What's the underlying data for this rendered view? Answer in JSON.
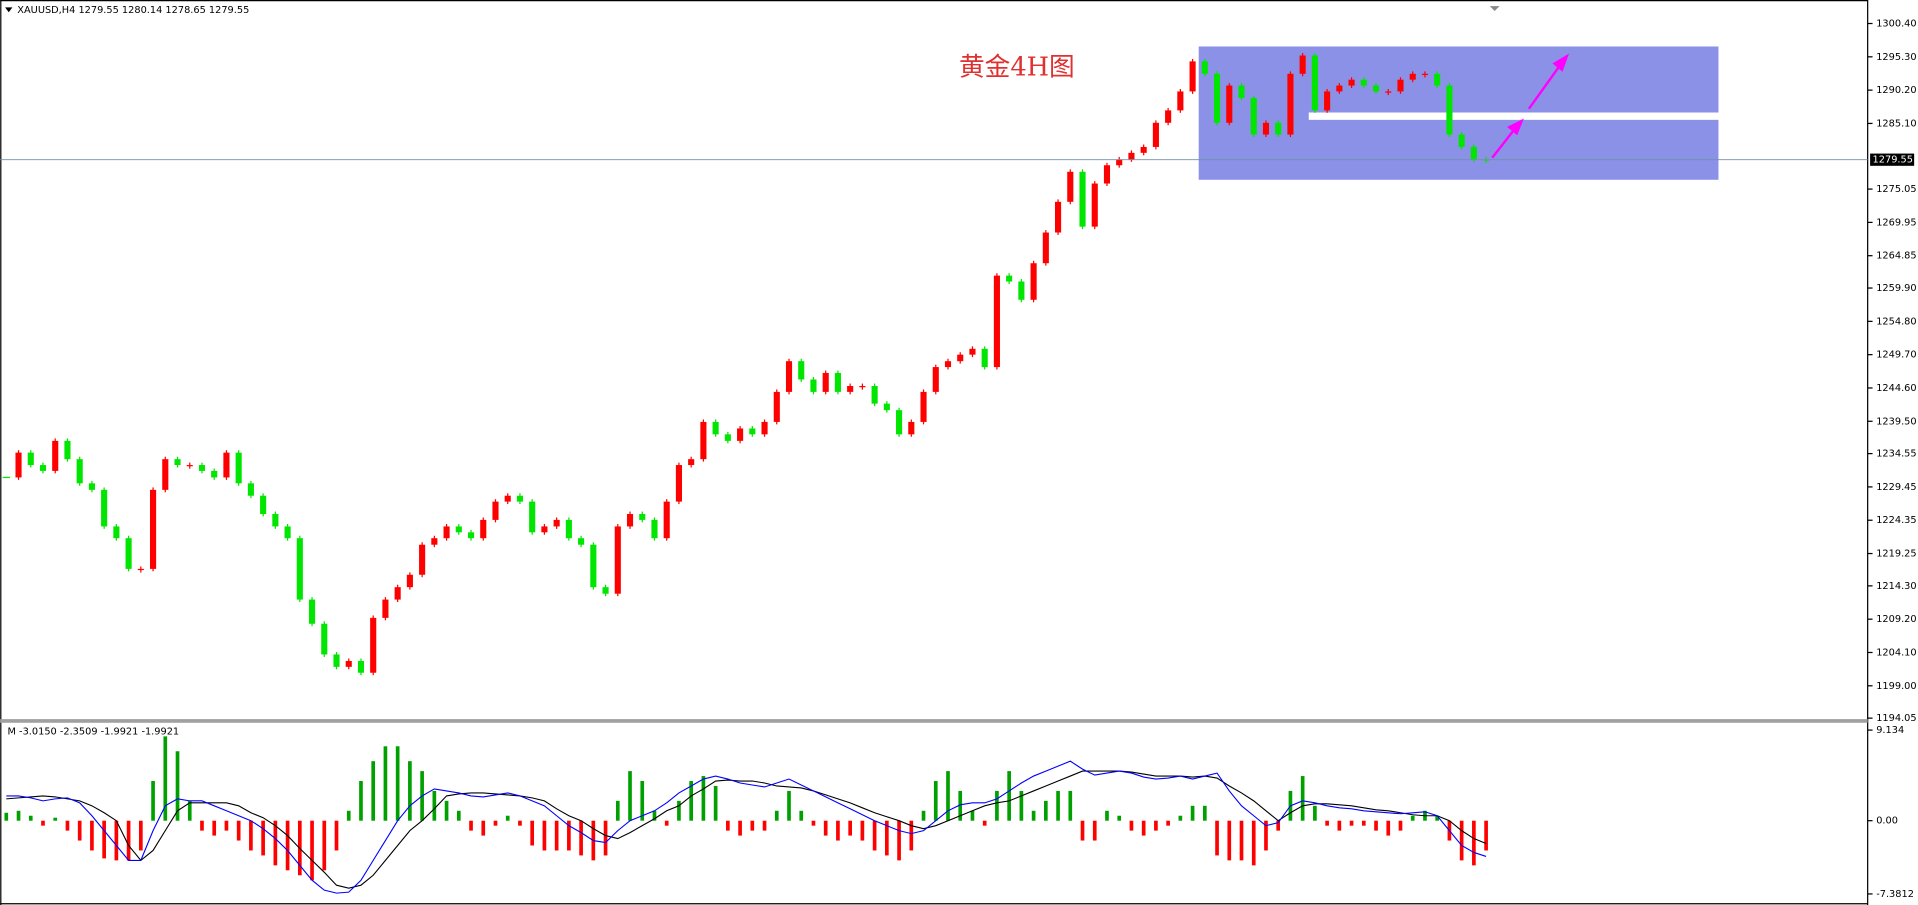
{
  "chart_data": [
    {
      "type": "candlestick",
      "header": "XAUUSD,H4  1279.55 1280.14 1278.65 1279.55",
      "annotations": [
        "黄金4H图"
      ],
      "up_color": "#ff0000",
      "down_color": "#00e600",
      "values": [
        1230.9,
        1234.7,
        1232.8,
        1231.9,
        1236.5,
        1233.7,
        1230,
        1229,
        1223.4,
        1221.6,
        1216.9,
        1216.9,
        1229,
        1233.7,
        1232.8,
        1232.8,
        1231.9,
        1230.9,
        1234.7,
        1230,
        1228.1,
        1225.3,
        1223.4,
        1221.6,
        1212.2,
        1208.5,
        1203.8,
        1201.9,
        1202.8,
        1201,
        1209.4,
        1212.2,
        1214.1,
        1216,
        1220.6,
        1221.6,
        1223.4,
        1222.5,
        1221.6,
        1224.4,
        1227.2,
        1228.1,
        1227.2,
        1222.5,
        1223.4,
        1224.4,
        1221.6,
        1220.6,
        1214.1,
        1213.1,
        1223.4,
        1225.3,
        1224.4,
        1221.6,
        1227.2,
        1232.8,
        1233.7,
        1239.4,
        1237.5,
        1236.5,
        1238.4,
        1237.5,
        1239.4,
        1244,
        1248.7,
        1245.9,
        1244,
        1246.9,
        1244,
        1244.9,
        1244.9,
        1242.2,
        1241.2,
        1237.5,
        1239.4,
        1244,
        1247.8,
        1248.7,
        1249.7,
        1250.6,
        1247.8,
        1261.8,
        1260.9,
        1258.1,
        1263.7,
        1268.4,
        1273.1,
        1277.7,
        1269.3,
        1275.9,
        1278.7,
        1279.6,
        1280.6,
        1281.5,
        1285.2,
        1287.1,
        1290,
        1294.6,
        1292.7,
        1285.2,
        1290.9,
        1289,
        1283.4,
        1285.2,
        1283.4,
        1292.7,
        1295.5,
        1287.1,
        1290,
        1290.9,
        1291.8,
        1290.9,
        1290,
        1290,
        1291.8,
        1292.7,
        1292.7,
        1290.9,
        1283.4,
        1281.5,
        1279.6,
        1279.55
      ],
      "current_price": {
        "value": 1279.55,
        "label": "1279.55"
      },
      "ylim": [
        1193.9,
        1304.0
      ],
      "yticks": [
        {
          "value": 1300.4,
          "label": "1300.40"
        },
        {
          "value": 1295.3,
          "label": "1295.30"
        },
        {
          "value": 1290.2,
          "label": "1290.20"
        },
        {
          "value": 1285.1,
          "label": "1285.10"
        },
        {
          "value": 1275.05,
          "label": "1275.05"
        },
        {
          "value": 1269.95,
          "label": "1269.95"
        },
        {
          "value": 1264.85,
          "label": "1264.85"
        },
        {
          "value": 1259.9,
          "label": "1259.90"
        },
        {
          "value": 1254.8,
          "label": "1254.80"
        },
        {
          "value": 1249.7,
          "label": "1249.70"
        },
        {
          "value": 1244.6,
          "label": "1244.60"
        },
        {
          "value": 1239.5,
          "label": "1239.50"
        },
        {
          "value": 1234.55,
          "label": "1234.55"
        },
        {
          "value": 1229.45,
          "label": "1229.45"
        },
        {
          "value": 1224.35,
          "label": "1224.35"
        },
        {
          "value": 1219.25,
          "label": "1219.25"
        },
        {
          "value": 1214.3,
          "label": "1214.30"
        },
        {
          "value": 1209.2,
          "label": "1209.20"
        },
        {
          "value": 1204.1,
          "label": "1204.10"
        },
        {
          "value": 1199,
          "label": "1199.00"
        },
        {
          "value": 1194.05,
          "label": "1194.05"
        }
      ]
    },
    {
      "type": "macd",
      "label": "M -3.0150 -2.3509 -1.9921 -1.9921",
      "ylim": [
        -8.25,
        9.87
      ],
      "yticks": [
        9.134,
        {
          "value": 0,
          "label": "0.00"
        },
        -7.3812
      ],
      "series": [
        {
          "type": "bar",
          "color": "#00a000",
          "negative_color": "#ff0000",
          "values": [
            0.8,
            1,
            0.5,
            -0.5,
            0.3,
            -1,
            -2,
            -3,
            -3.8,
            -4,
            -4,
            -3,
            4,
            8.5,
            7,
            2,
            -1,
            -1.5,
            -1,
            -2,
            -3,
            -3.5,
            -4.5,
            -5,
            -5.5,
            -6,
            -5,
            -3,
            1,
            4,
            6,
            7.5,
            7.5,
            6,
            5,
            3,
            2,
            1,
            -1,
            -1.5,
            -0.5,
            0.5,
            -0.5,
            -2.5,
            -3,
            -3,
            -3,
            -3.5,
            -4,
            -3.5,
            2,
            5,
            4,
            1,
            -0.5,
            2,
            4,
            4.5,
            3.5,
            -1,
            -1.5,
            -1,
            -1,
            1,
            3,
            1,
            -0.5,
            -1.5,
            -2,
            -1.5,
            -2,
            -3,
            -3.5,
            -4,
            -3,
            1,
            4,
            5,
            3,
            1,
            -0.5,
            3,
            5,
            3,
            1,
            2,
            3,
            3,
            -2,
            -2,
            1,
            0.5,
            -1,
            -1.5,
            -1,
            -0.5,
            0.5,
            1.5,
            1.5,
            -3.5,
            -4,
            -4,
            -4.5,
            -3,
            -1,
            3,
            4.5,
            1.5,
            -0.5,
            -1,
            -0.5,
            -0.5,
            -1,
            -1.5,
            -1,
            0.5,
            1,
            0.5,
            -2,
            -4,
            -4.5,
            -3
          ]
        },
        {
          "type": "line",
          "color": "#000000",
          "values": [
            2.2,
            2.3,
            2.4,
            2.5,
            2.4,
            2.2,
            2,
            1.5,
            0.8,
            0,
            -2.5,
            -4,
            -3,
            -1,
            1,
            1.8,
            1.8,
            1.8,
            1.8,
            1.5,
            0.8,
            0.3,
            -0.5,
            -1.5,
            -2.8,
            -4,
            -5.2,
            -6.5,
            -6.8,
            -6.5,
            -5.5,
            -4,
            -2.5,
            -1,
            0,
            1.2,
            2.5,
            2.7,
            2.8,
            2.8,
            2.7,
            2.6,
            2.5,
            2.3,
            2,
            1.2,
            0.5,
            0,
            -0.8,
            -1.5,
            -1.8,
            -1.2,
            -0.5,
            0.2,
            1,
            1.5,
            2.5,
            3.2,
            4,
            4.1,
            4,
            4,
            3.8,
            3.5,
            3.4,
            3.3,
            3,
            2.6,
            2.2,
            1.8,
            1.3,
            0.8,
            0.4,
            0,
            -0.5,
            -0.8,
            -0.5,
            0,
            0.5,
            1,
            1.5,
            1.8,
            2,
            2.5,
            3,
            3.5,
            4,
            4.5,
            5,
            5,
            5,
            5,
            4.9,
            4.7,
            4.5,
            4.5,
            4.5,
            4.4,
            4.5,
            4.3,
            3.5,
            2.8,
            2,
            1,
            0,
            0.8,
            1.5,
            1.7,
            1.7,
            1.6,
            1.5,
            1.3,
            1.1,
            1,
            0.8,
            0.6,
            0.5,
            0.5,
            0,
            -1,
            -1.8,
            -2.3
          ]
        },
        {
          "type": "line",
          "color": "#0000ff",
          "values": [
            2.5,
            2.5,
            2.3,
            2,
            2.2,
            2.3,
            1.8,
            0.5,
            -1,
            -2.5,
            -4,
            -4,
            -1,
            1.5,
            2.2,
            2,
            2,
            1.5,
            1,
            0.5,
            0,
            -0.8,
            -1.8,
            -3,
            -4.5,
            -6,
            -7,
            -7.3,
            -7.2,
            -6,
            -4,
            -2,
            0,
            1.5,
            2.5,
            3.2,
            3,
            2.8,
            2.5,
            2.4,
            2.6,
            2.8,
            2.5,
            2,
            1.5,
            0.5,
            -0.5,
            -1.2,
            -2,
            -2.2,
            -1,
            0,
            0.5,
            1,
            1.8,
            2.8,
            3.5,
            4.2,
            4.5,
            4.2,
            3.8,
            3.6,
            3.4,
            3.8,
            4.2,
            3.6,
            3,
            2.4,
            1.8,
            1.2,
            0.6,
            0,
            -0.5,
            -1,
            -1.3,
            -1,
            0,
            1,
            1.6,
            1.8,
            1.8,
            2.2,
            3,
            3.8,
            4.5,
            5,
            5.5,
            6,
            5.2,
            4.6,
            4.8,
            5,
            4.8,
            4.4,
            4.2,
            4.3,
            4.5,
            4.2,
            4.5,
            4.8,
            3,
            1.5,
            0.5,
            -0.5,
            -0.2,
            1.5,
            2,
            1.8,
            1.5,
            1.3,
            1.2,
            1,
            0.9,
            0.8,
            0.7,
            0.8,
            0.9,
            0.5,
            -1,
            -2.5,
            -3.2,
            -3.6
          ]
        }
      ]
    }
  ]
}
